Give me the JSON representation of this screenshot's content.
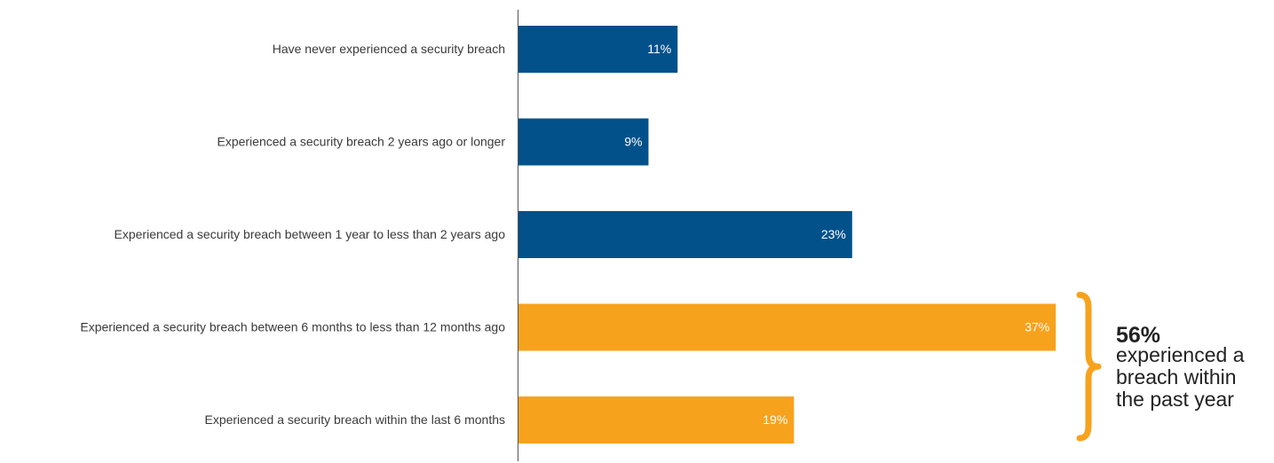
{
  "chart_data": {
    "type": "bar",
    "orientation": "horizontal",
    "categories": [
      "Have never experienced a security breach",
      "Experienced a security breach 2 years ago or longer",
      "Experienced a security breach between 1 year to less than 2 years ago",
      "Experienced a security breach between 6 months to less than 12 months ago",
      "Experienced a security breach within the last 6 months"
    ],
    "values": [
      11,
      9,
      23,
      37,
      19
    ],
    "value_labels": [
      "11%",
      "9%",
      "23%",
      "37%",
      "19%"
    ],
    "colors": [
      "#02518a",
      "#02518a",
      "#02518a",
      "#f7a21d",
      "#f7a21d"
    ],
    "xlim": [
      0,
      52
    ],
    "grid": false,
    "annotation": {
      "percent": "56%",
      "lines": [
        "experienced a",
        "breach within",
        "the past year"
      ],
      "brace_color": "#f7a21d",
      "applies_to": [
        3,
        4
      ]
    }
  }
}
